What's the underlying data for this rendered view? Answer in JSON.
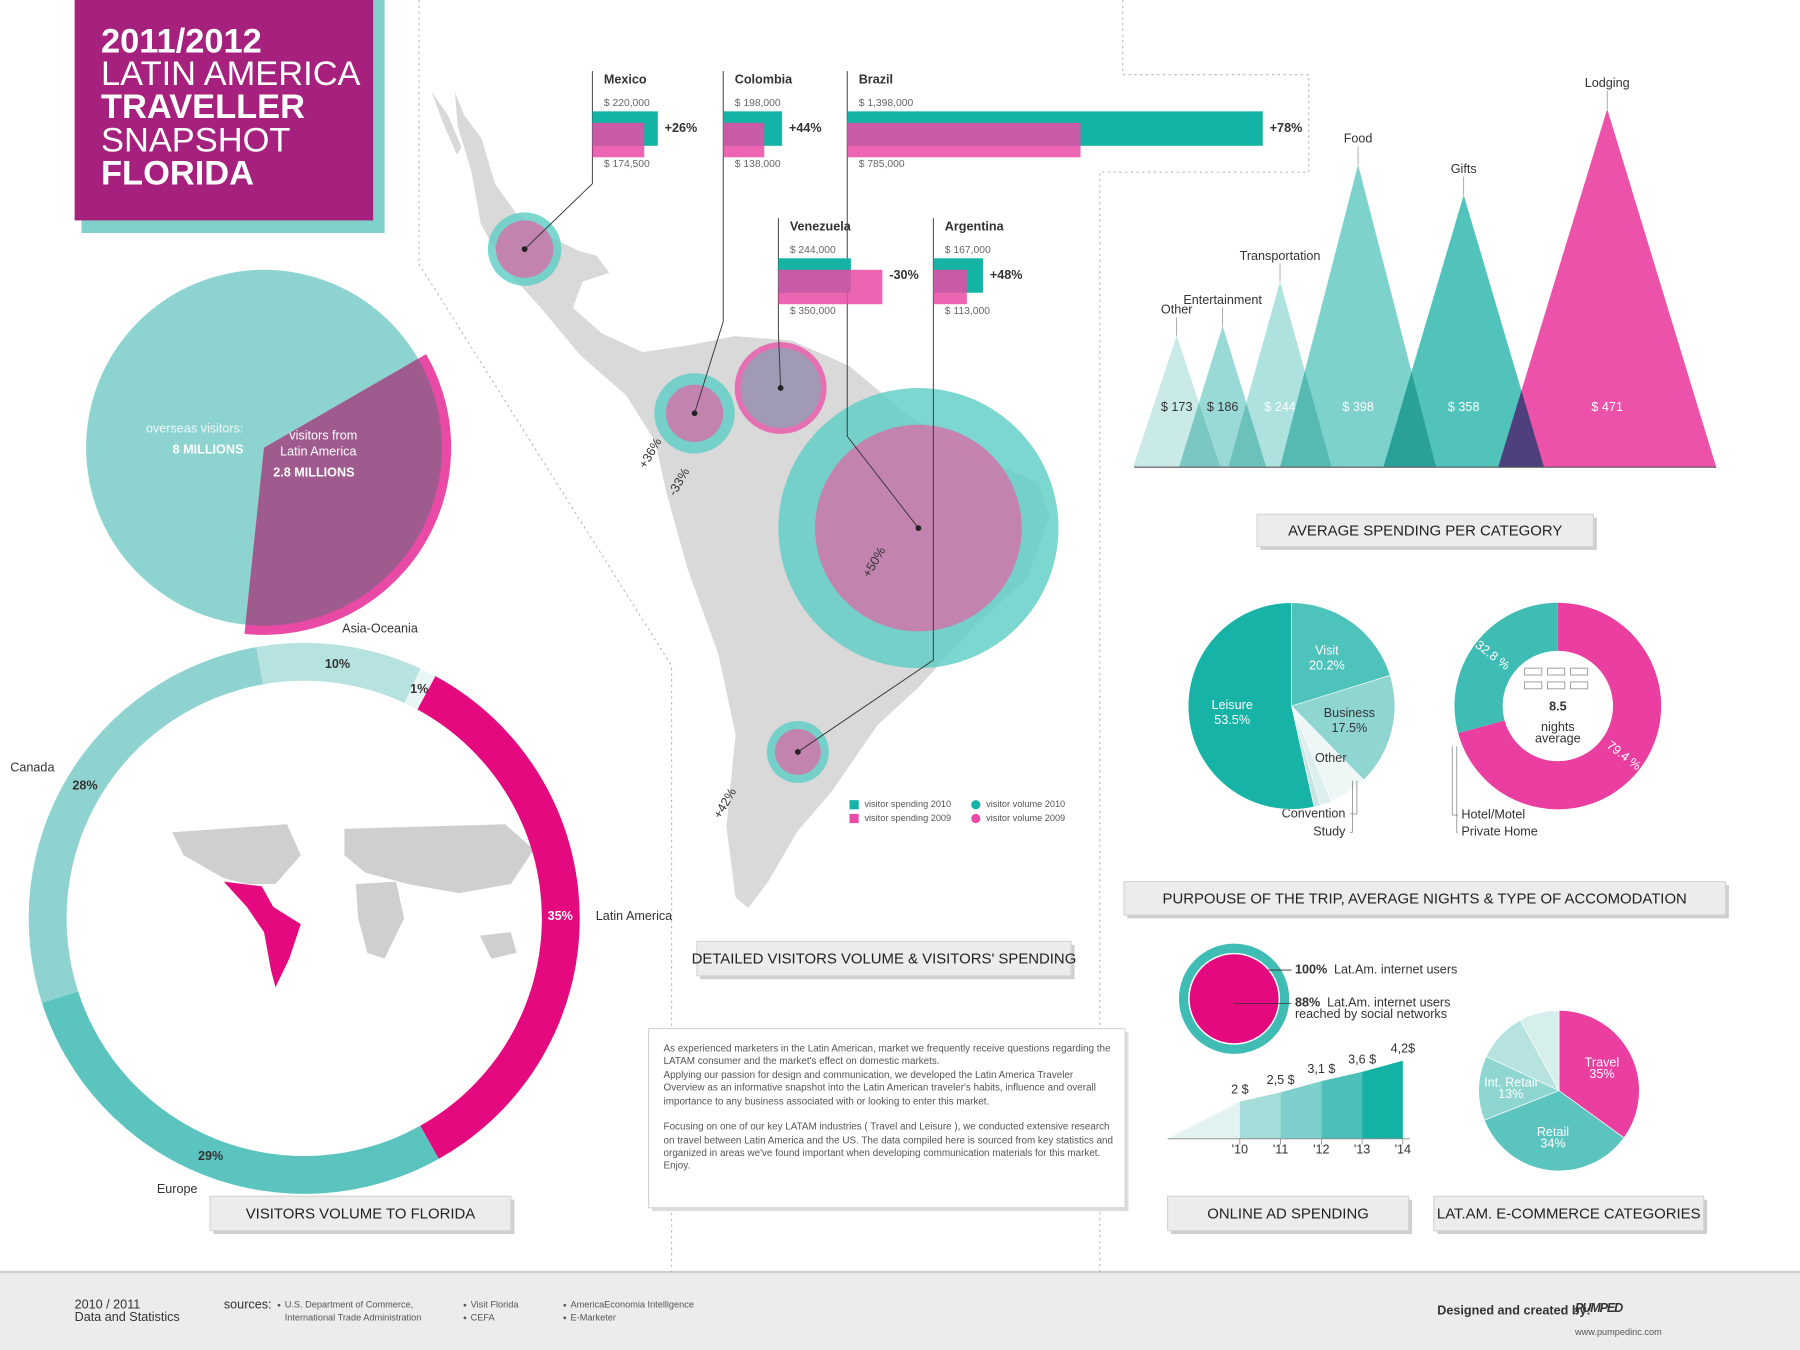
{
  "header": {
    "lines": [
      "2011/2012",
      "LATIN AMERICA",
      "TRAVELLER",
      "SNAPSHOT",
      "FLORIDA"
    ]
  },
  "overseas": {
    "total_caption": "overseas visitors:",
    "total": {
      "value": 8,
      "label": "8 MILLIONS"
    },
    "latam_caption": [
      "visitors from",
      "Latin America"
    ],
    "latam": {
      "value": 2.8,
      "label": "2.8 MILLIONS"
    }
  },
  "visitors_volume": {
    "title": "VISITORS VOLUME  TO FLORIDA",
    "segments": [
      {
        "name": "Asia-Oceania",
        "value": 10,
        "label": "10%"
      },
      {
        "name": null,
        "value": 1,
        "label": "1%"
      },
      {
        "name": "Latin America",
        "value": 35,
        "label": "35%"
      },
      {
        "name": "Europe",
        "value": 29,
        "label": "29%"
      },
      {
        "name": "Canada",
        "value": 28,
        "label": "28%"
      }
    ]
  },
  "countries": {
    "title": "DETAILED VISITORS VOLUME & VISITORS' SPENDING",
    "items": [
      {
        "name": "Mexico",
        "spending_2010": {
          "value": 220000,
          "label": "$ 220,000"
        },
        "spending_2009": {
          "value": 174500,
          "label": "$ 174,500"
        },
        "change": "+26%"
      },
      {
        "name": "Colombia",
        "spending_2010": {
          "value": 198000,
          "label": "$ 198,000"
        },
        "spending_2009": {
          "value": 138000,
          "label": "$ 138,000"
        },
        "change": "+44%"
      },
      {
        "name": "Brazil",
        "spending_2010": {
          "value": 1398000,
          "label": "$ 1,398,000"
        },
        "spending_2009": {
          "value": 785000,
          "label": "$ 785,000"
        },
        "change": "+78%"
      },
      {
        "name": "Venezuela",
        "spending_2010": {
          "value": 244000,
          "label": "$ 244,000"
        },
        "spending_2009": {
          "value": 350000,
          "label": "$ 350,000"
        },
        "change": "-30%"
      },
      {
        "name": "Argentina",
        "spending_2010": {
          "value": 167000,
          "label": "$ 167,000"
        },
        "spending_2009": {
          "value": 113000,
          "label": "$ 113,000"
        },
        "change": "+48%"
      }
    ],
    "volume_changes": [
      "+36%",
      "-33%",
      "+50%",
      "+42%"
    ],
    "legend": [
      "visitor spending 2010",
      "visitor spending 2009",
      "visitor volume 2010",
      "visitor volume 2009"
    ]
  },
  "spending": {
    "title": "AVERAGE SPENDING PER CATEGORY",
    "categories": [
      "Other",
      "Entertainment",
      "Transportation",
      "Food",
      "Gifts",
      "Lodging"
    ],
    "values": [
      173,
      186,
      244,
      398,
      358,
      471
    ],
    "value_labels": [
      "$ 173",
      "$ 186",
      "$ 244",
      "$ 398",
      "$ 358",
      "$ 471"
    ]
  },
  "trip": {
    "title": "PURPOUSE OF THE TRIP, AVERAGE NIGHTS & TYPE OF ACCOMODATION",
    "purpose": {
      "categories": [
        "Visit",
        "Business",
        "Other",
        "Convention",
        "Study",
        "Leisure"
      ],
      "values": [
        20.2,
        17.5,
        6,
        1.8,
        1,
        53.5
      ],
      "value_labels": [
        "20.2%",
        "17.5%",
        null,
        null,
        null,
        "53.5%"
      ]
    },
    "accommodation": {
      "values": [
        79.4,
        32.8
      ],
      "value_labels": [
        "79.4 %",
        "32.8 %"
      ],
      "legend": [
        "Hotel/Motel",
        "Private Home"
      ]
    },
    "nights": {
      "number": "8.5",
      "caption": [
        "nights",
        "average"
      ]
    }
  },
  "internet": [
    {
      "share": {
        "value": 100,
        "label": "100%"
      },
      "text": [
        "Lat.Am. internet users"
      ]
    },
    {
      "share": {
        "value": 88,
        "label": "88%"
      },
      "text": [
        "Lat.Am. internet users",
        "reached by social networks"
      ]
    }
  ],
  "ad_spending": {
    "title": "ONLINE AD SPENDING",
    "categories": [
      "'10",
      "'11",
      "'12",
      "'13",
      "'14"
    ],
    "values": [
      2,
      2.5,
      3.1,
      3.6,
      4.2
    ],
    "value_labels": [
      "2 $",
      "2,5 $",
      "3,1 $",
      "3,6 $",
      "4,2$"
    ]
  },
  "ecommerce": {
    "title": "LAT.AM. E-COMMERCE CATEGORIES",
    "categories": [
      "Travel",
      "Retail",
      "Int. Retail",
      null,
      null
    ],
    "values": [
      35,
      34,
      13,
      10,
      8
    ],
    "value_labels": [
      "35%",
      "34%",
      "13%",
      null,
      null
    ]
  },
  "about": {
    "paragraphs": [
      "As experienced marketers in the Latin American, market we frequently receive questions regarding the LATAM consumer and the market's effect on domestic markets.",
      "Applying our passion for design and communication, we developed the Latin America Traveler Overview as an informative snapshot into the Latin American traveler's habits, influence and overall importance to any business associated with or looking to enter this market.",
      "Focusing on one of our key LATAM industries ( Travel and Leisure ), we conducted extensive research on travel between Latin America and the US. The data compiled here is sourced from key statistics and organized in areas we've found important when developing communication materials for this market. Enjoy."
    ]
  },
  "footer": {
    "period": "2010 / 2011",
    "period_caption": "Data and Statistics",
    "sources_label": "sources:",
    "sources": [
      "U.S. Department of Commerce,",
      "International Trade Administration",
      "Visit Florida",
      "CEFA",
      "AmericaEconomia Intelligence",
      "E-Marketer"
    ],
    "credit": "Designed and created by:",
    "brand": "PUMPED",
    "url": "www.pumpedinc.com"
  }
}
